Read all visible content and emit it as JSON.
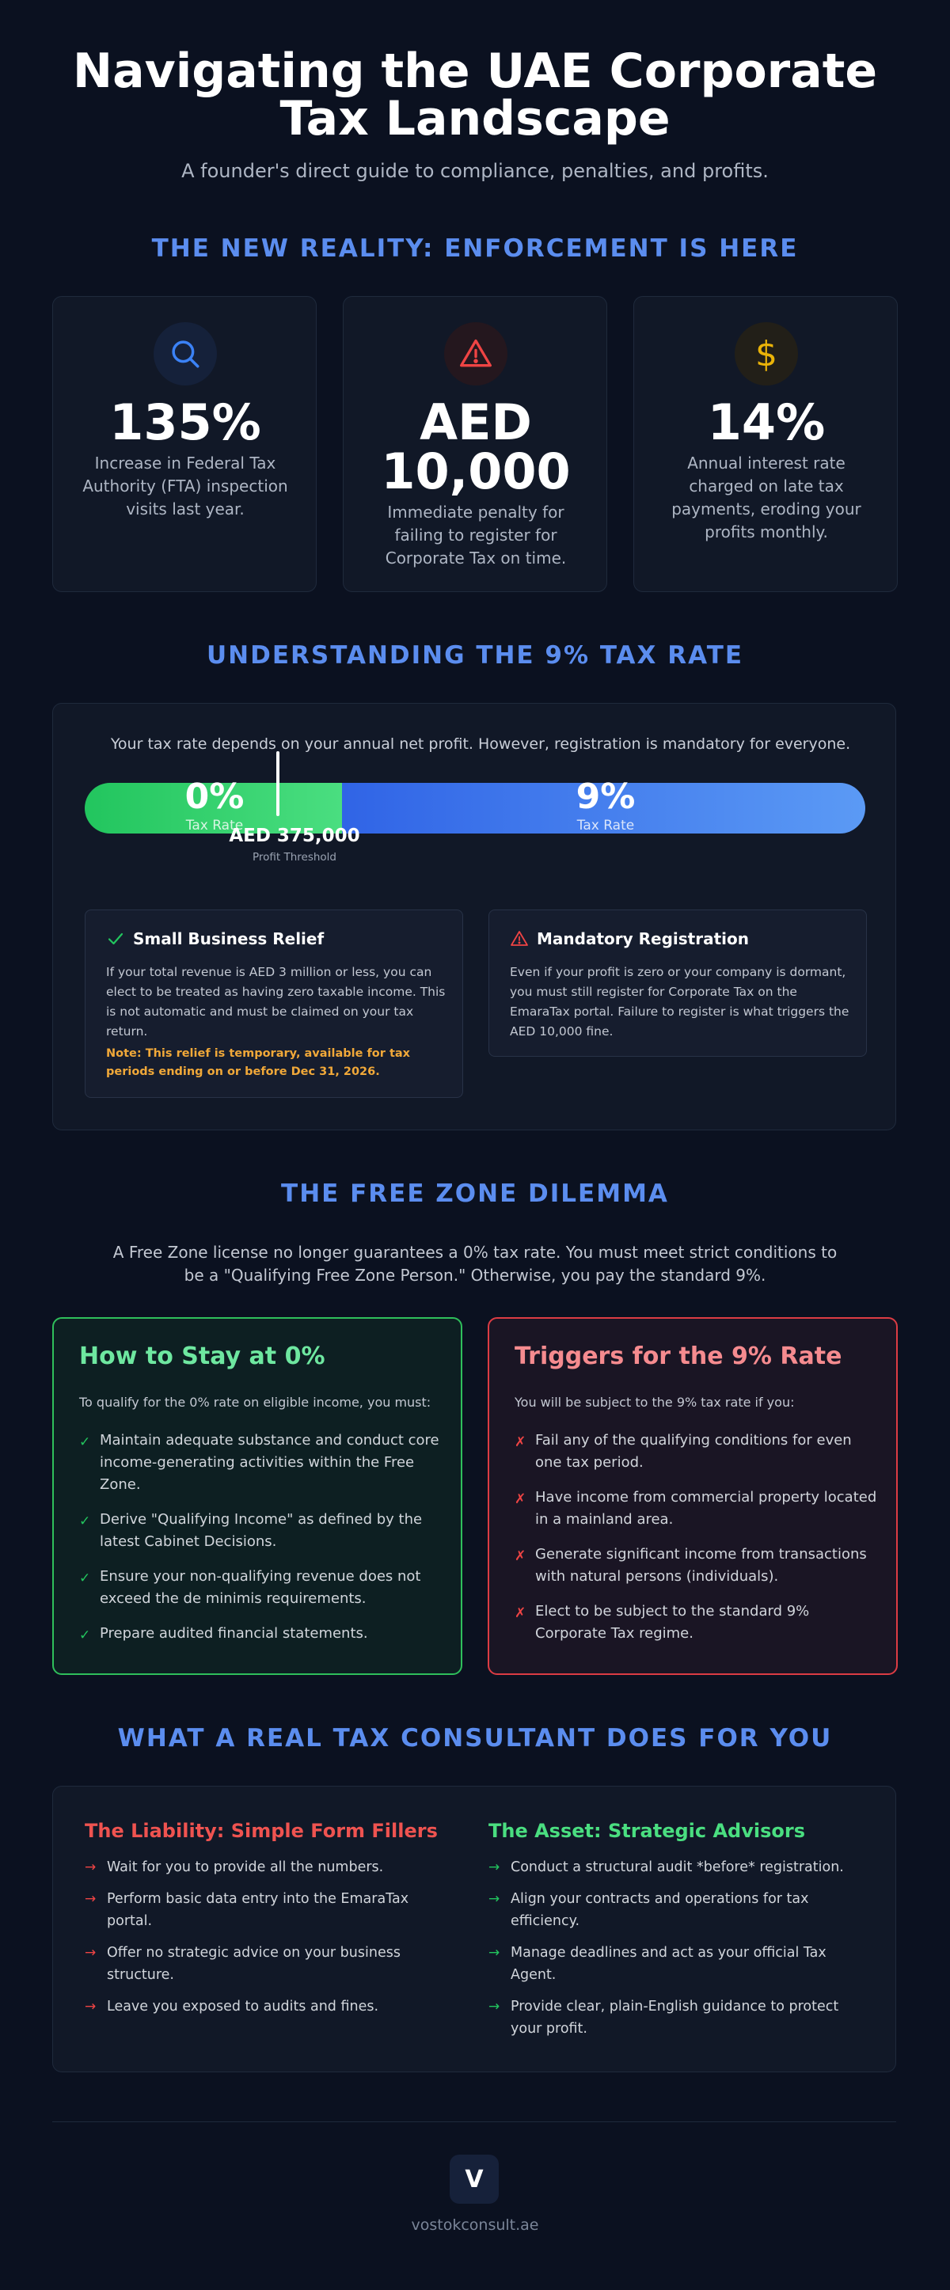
{
  "header": {
    "title_line1": "Navigating the UAE Corporate",
    "title_line2": "Tax Landscape",
    "subtitle": "A founder's direct guide to compliance, penalties, and profits."
  },
  "enforcement": {
    "title": "THE NEW REALITY: ENFORCEMENT IS HERE",
    "stats": [
      {
        "icon": "search-icon",
        "value": "135%",
        "desc": "Increase in Federal Tax Authority (FTA) inspection visits last year."
      },
      {
        "icon": "warning-icon",
        "value_line1": "AED",
        "value_line2": "10,000",
        "desc": "Immediate penalty for failing to register for Corporate Tax on time."
      },
      {
        "icon": "dollar-icon",
        "value": "14%",
        "desc": "Annual interest rate charged on late tax payments, eroding your profits monthly."
      }
    ],
    "colors": {
      "search": "#3b82f6",
      "warning": "#ef4444",
      "dollar": "#eab308"
    }
  },
  "tax_rate": {
    "title": "UNDERSTANDING THE 9% TAX RATE",
    "intro": "Your tax rate depends on your annual net profit. However, registration is mandatory for everyone.",
    "bar": {
      "left_pct": "0%",
      "left_label": "Tax Rate",
      "right_pct": "9%",
      "right_label": "Tax Rate",
      "threshold_value": "AED 375,000",
      "threshold_label": "Profit Threshold",
      "threshold_fraction": 0.33
    },
    "relief": {
      "title": "Small Business Relief",
      "body": "If your total revenue is AED 3 million or less, you can elect to be treated as having zero taxable income. This is not automatic and must be claimed on your tax return.",
      "note": "Note: This relief is temporary, available for tax periods ending on or before Dec 31, 2026."
    },
    "mandatory": {
      "title": "Mandatory Registration",
      "body": "Even if your profit is zero or your company is dormant, you must still register for Corporate Tax on the EmaraTax portal. Failure to register is what triggers the AED 10,000 fine."
    }
  },
  "free_zone": {
    "title": "THE FREE ZONE DILEMMA",
    "intro": "A Free Zone license no longer guarantees a 0% tax rate. You must meet strict conditions to be a \"Qualifying Free Zone Person.\" Otherwise, you pay the standard 9%.",
    "stay": {
      "title": "How to Stay at 0%",
      "subtitle": "To qualify for the 0% rate on eligible income, you must:",
      "items": [
        "Maintain adequate substance and conduct core income-generating activities within the Free Zone.",
        "Derive \"Qualifying Income\" as defined by the latest Cabinet Decisions.",
        "Ensure your non-qualifying revenue does not exceed the de minimis requirements.",
        "Prepare audited financial statements."
      ]
    },
    "triggers": {
      "title": "Triggers for the 9% Rate",
      "subtitle": "You will be subject to the 9% tax rate if you:",
      "items": [
        "Fail any of the qualifying conditions for even one tax period.",
        "Have income from commercial property located in a mainland area.",
        "Generate significant income from transactions with natural persons (individuals).",
        "Elect to be subject to the standard 9% Corporate Tax regime."
      ]
    }
  },
  "consultant": {
    "title": "WHAT A REAL TAX CONSULTANT DOES FOR YOU",
    "liability": {
      "title": "The Liability: Simple Form Fillers",
      "items": [
        "Wait for you to provide all the numbers.",
        "Perform basic data entry into the EmaraTax portal.",
        "Offer no strategic advice on your business structure.",
        "Leave you exposed to audits and fines."
      ]
    },
    "asset": {
      "title": "The Asset: Strategic Advisors",
      "items": [
        "Conduct a structural audit *before* registration.",
        "Align your contracts and operations for tax efficiency.",
        "Manage deadlines and act as your official Tax Agent.",
        "Provide clear, plain-English guidance to protect your profit."
      ]
    }
  },
  "footer": {
    "logo_letter": "V",
    "site": "vostokconsult.ae"
  }
}
